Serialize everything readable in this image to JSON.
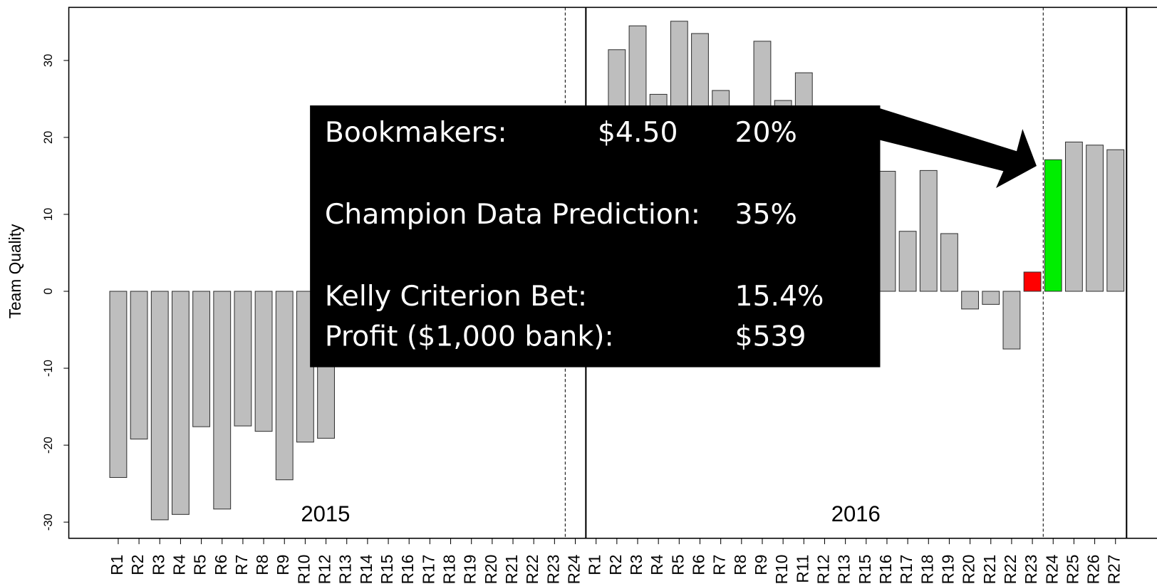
{
  "chart_data": {
    "type": "bar",
    "ylabel": "Team Quality",
    "categories": [
      "R1",
      "R2",
      "R3",
      "R4",
      "R5",
      "R6",
      "R7",
      "R8",
      "R9",
      "R10",
      "R12",
      "R13",
      "R14",
      "R15",
      "R16",
      "R17",
      "R18",
      "R19",
      "R20",
      "R21",
      "R22",
      "R23",
      "R24",
      "R1",
      "R2",
      "R3",
      "R4",
      "R5",
      "R6",
      "R7",
      "R8",
      "R9",
      "R10",
      "R11",
      "R12",
      "R13",
      "R15",
      "R16",
      "R17",
      "R18",
      "R19",
      "R20",
      "R21",
      "R22",
      "R23",
      "R24",
      "R25",
      "R26",
      "R27"
    ],
    "values": [
      -24.2,
      -19.2,
      -29.7,
      -29.0,
      -17.6,
      -28.3,
      -17.5,
      -18.2,
      -24.5,
      -19.6,
      -19.1,
      null,
      null,
      null,
      null,
      null,
      null,
      null,
      null,
      null,
      null,
      null,
      null,
      null,
      31.4,
      34.5,
      25.6,
      35.1,
      33.5,
      26.1,
      null,
      32.5,
      24.8,
      28.4,
      null,
      null,
      null,
      15.6,
      7.8,
      15.7,
      7.5,
      -2.3,
      -1.7,
      -7.5,
      2.5,
      17.1,
      19.4,
      19.0,
      18.4
    ],
    "colors": [
      "#bebebe",
      "#bebebe",
      "#bebebe",
      "#bebebe",
      "#bebebe",
      "#bebebe",
      "#bebebe",
      "#bebebe",
      "#bebebe",
      "#bebebe",
      "#bebebe",
      null,
      null,
      null,
      null,
      null,
      null,
      null,
      null,
      null,
      null,
      null,
      null,
      null,
      "#bebebe",
      "#bebebe",
      "#bebebe",
      "#bebebe",
      "#bebebe",
      "#bebebe",
      null,
      "#bebebe",
      "#bebebe",
      "#bebebe",
      null,
      null,
      null,
      "#bebebe",
      "#bebebe",
      "#bebebe",
      "#bebebe",
      "#bebebe",
      "#bebebe",
      "#bebebe",
      "#ff0000",
      "#00ee00",
      "#bebebe",
      "#bebebe",
      "#bebebe"
    ],
    "ylim": [
      -32.1,
      36.9
    ],
    "yticks": [
      -30,
      -20,
      -10,
      0,
      10,
      20,
      30
    ],
    "annotations": [
      "2015",
      "2016"
    ]
  },
  "callout": {
    "rows": [
      [
        "Bookmakers:",
        "$4.50",
        "20%"
      ],
      [
        "Champion Data Prediction:",
        "35%"
      ],
      [
        "Kelly Criterion Bet:",
        "15.4%"
      ],
      [
        "Profit ($1,000 bank):",
        "$539"
      ]
    ]
  }
}
